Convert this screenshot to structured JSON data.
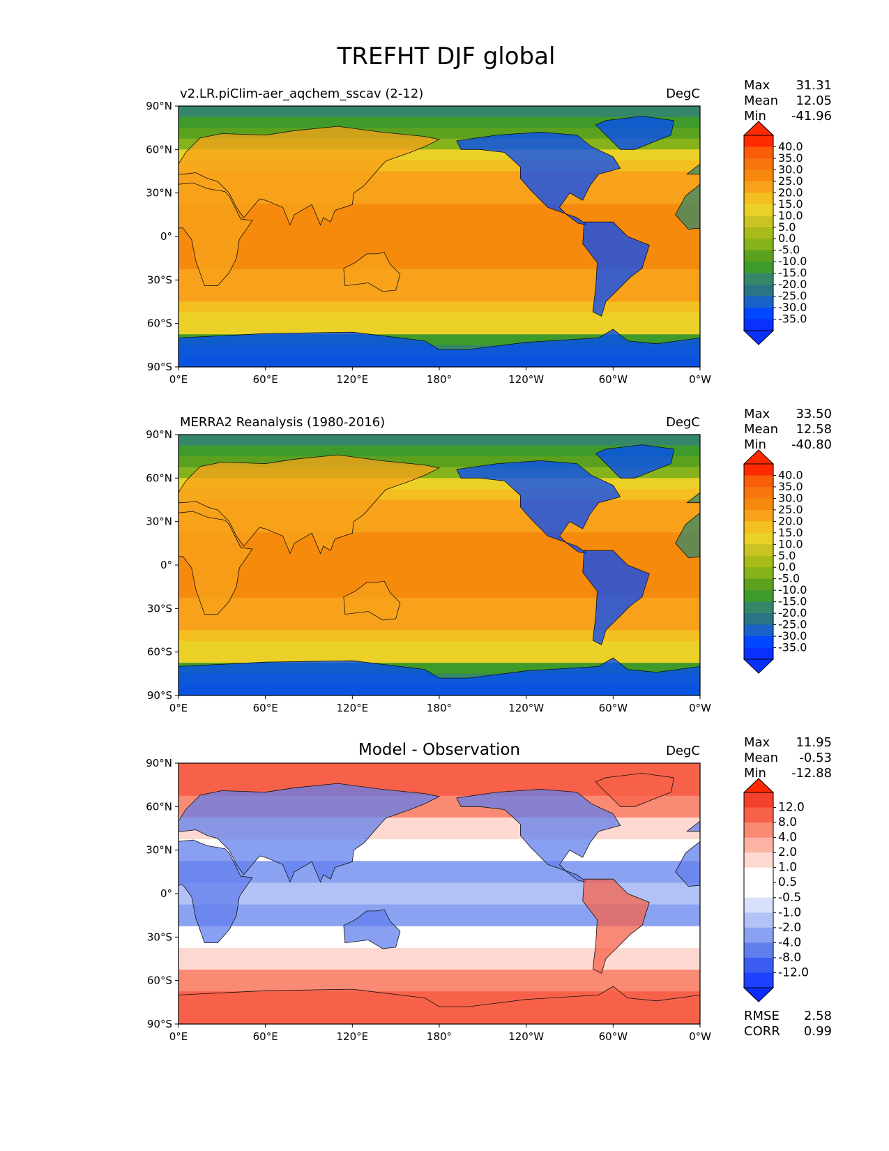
{
  "figure": {
    "title": "TREFHT DJF global"
  },
  "chart_data": [
    {
      "type": "heatmap",
      "title_left": "v2.LR.piClim-aer_aqchem_sscav (2-12)",
      "title_center": "",
      "units": "DegC",
      "stats": [
        {
          "label": "Max",
          "value": "31.31"
        },
        {
          "label": "Mean",
          "value": "12.05"
        },
        {
          "label": "Min",
          "value": "-41.96"
        }
      ],
      "colorbar": {
        "extend": "both",
        "levels": [
          "40.0",
          "35.0",
          "30.0",
          "25.0",
          "20.0",
          "15.0",
          "10.0",
          "5.0",
          "0.0",
          "-5.0",
          "-10.0",
          "-15.0",
          "-20.0",
          "-25.0",
          "-30.0",
          "-35.0"
        ],
        "colors": [
          "#ff2a00",
          "#fa5d08",
          "#f7750e",
          "#f58a0c",
          "#f7a21a",
          "#f4c021",
          "#ebd127",
          "#c9c424",
          "#a9bb18",
          "#86b31b",
          "#5ca11e",
          "#3f9a2c",
          "#35876a",
          "#2a7486",
          "#1a62c8",
          "#0048ff",
          "#0a30ff"
        ],
        "ext_low": "#0a30ff",
        "ext_high": "#ff2a00"
      },
      "xlabels": [
        "0°E",
        "60°E",
        "120°E",
        "180°",
        "120°W",
        "60°W",
        "0°W"
      ],
      "ylabels": [
        "90°N",
        "60°N",
        "30°N",
        "0°",
        "30°S",
        "60°S",
        "90°S"
      ],
      "xlim": [
        0,
        360
      ],
      "ylim": [
        -90,
        90
      ],
      "colormode": "temp"
    },
    {
      "type": "heatmap",
      "title_left": "MERRA2 Reanalysis (1980-2016)",
      "title_center": "",
      "units": "DegC",
      "stats": [
        {
          "label": "Max",
          "value": "33.50"
        },
        {
          "label": "Mean",
          "value": "12.58"
        },
        {
          "label": "Min",
          "value": "-40.80"
        }
      ],
      "colorbar": {
        "extend": "both",
        "levels": [
          "40.0",
          "35.0",
          "30.0",
          "25.0",
          "20.0",
          "15.0",
          "10.0",
          "5.0",
          "0.0",
          "-5.0",
          "-10.0",
          "-15.0",
          "-20.0",
          "-25.0",
          "-30.0",
          "-35.0"
        ],
        "colors": [
          "#ff2a00",
          "#fa5d08",
          "#f7750e",
          "#f58a0c",
          "#f7a21a",
          "#f4c021",
          "#ebd127",
          "#c9c424",
          "#a9bb18",
          "#86b31b",
          "#5ca11e",
          "#3f9a2c",
          "#35876a",
          "#2a7486",
          "#1a62c8",
          "#0048ff",
          "#0a30ff"
        ],
        "ext_low": "#0a30ff",
        "ext_high": "#ff2a00"
      },
      "xlabels": [
        "0°E",
        "60°E",
        "120°E",
        "180°",
        "120°W",
        "60°W",
        "0°W"
      ],
      "ylabels": [
        "90°N",
        "60°N",
        "30°N",
        "0°",
        "30°S",
        "60°S",
        "90°S"
      ],
      "xlim": [
        0,
        360
      ],
      "ylim": [
        -90,
        90
      ],
      "colormode": "temp_obs"
    },
    {
      "type": "heatmap",
      "title_left": "",
      "title_center": "Model - Observation",
      "units": "DegC",
      "stats": [
        {
          "label": "Max",
          "value": "11.95"
        },
        {
          "label": "Mean",
          "value": "-0.53"
        },
        {
          "label": "Min",
          "value": "-12.88"
        }
      ],
      "colorbar": {
        "extend": "both",
        "levels": [
          "12.0",
          "8.0",
          "4.0",
          "2.0",
          "1.0",
          "0.5",
          "-0.5",
          "-1.0",
          "-2.0",
          "-4.0",
          "-8.0",
          "-12.0"
        ],
        "colors": [
          "#f4402a",
          "#f7614a",
          "#f98a74",
          "#fbb3a3",
          "#fdd9d2",
          "#ffffff",
          "#ffffff",
          "#d9e0fb",
          "#b3c2f6",
          "#8aa2f1",
          "#617fec",
          "#3a5cf0",
          "#1e40ff"
        ],
        "ext_low": "#0a2cff",
        "ext_high": "#ff2800"
      },
      "xlabels": [
        "0°E",
        "60°E",
        "120°E",
        "180°",
        "120°W",
        "60°W",
        "0°W"
      ],
      "ylabels": [
        "90°N",
        "60°N",
        "30°N",
        "0°",
        "30°S",
        "60°S",
        "90°S"
      ],
      "xlim": [
        0,
        360
      ],
      "ylim": [
        -90,
        90
      ],
      "colormode": "diff",
      "metrics": [
        {
          "label": "RMSE",
          "value": "2.58"
        },
        {
          "label": "CORR",
          "value": "0.99"
        }
      ]
    }
  ]
}
